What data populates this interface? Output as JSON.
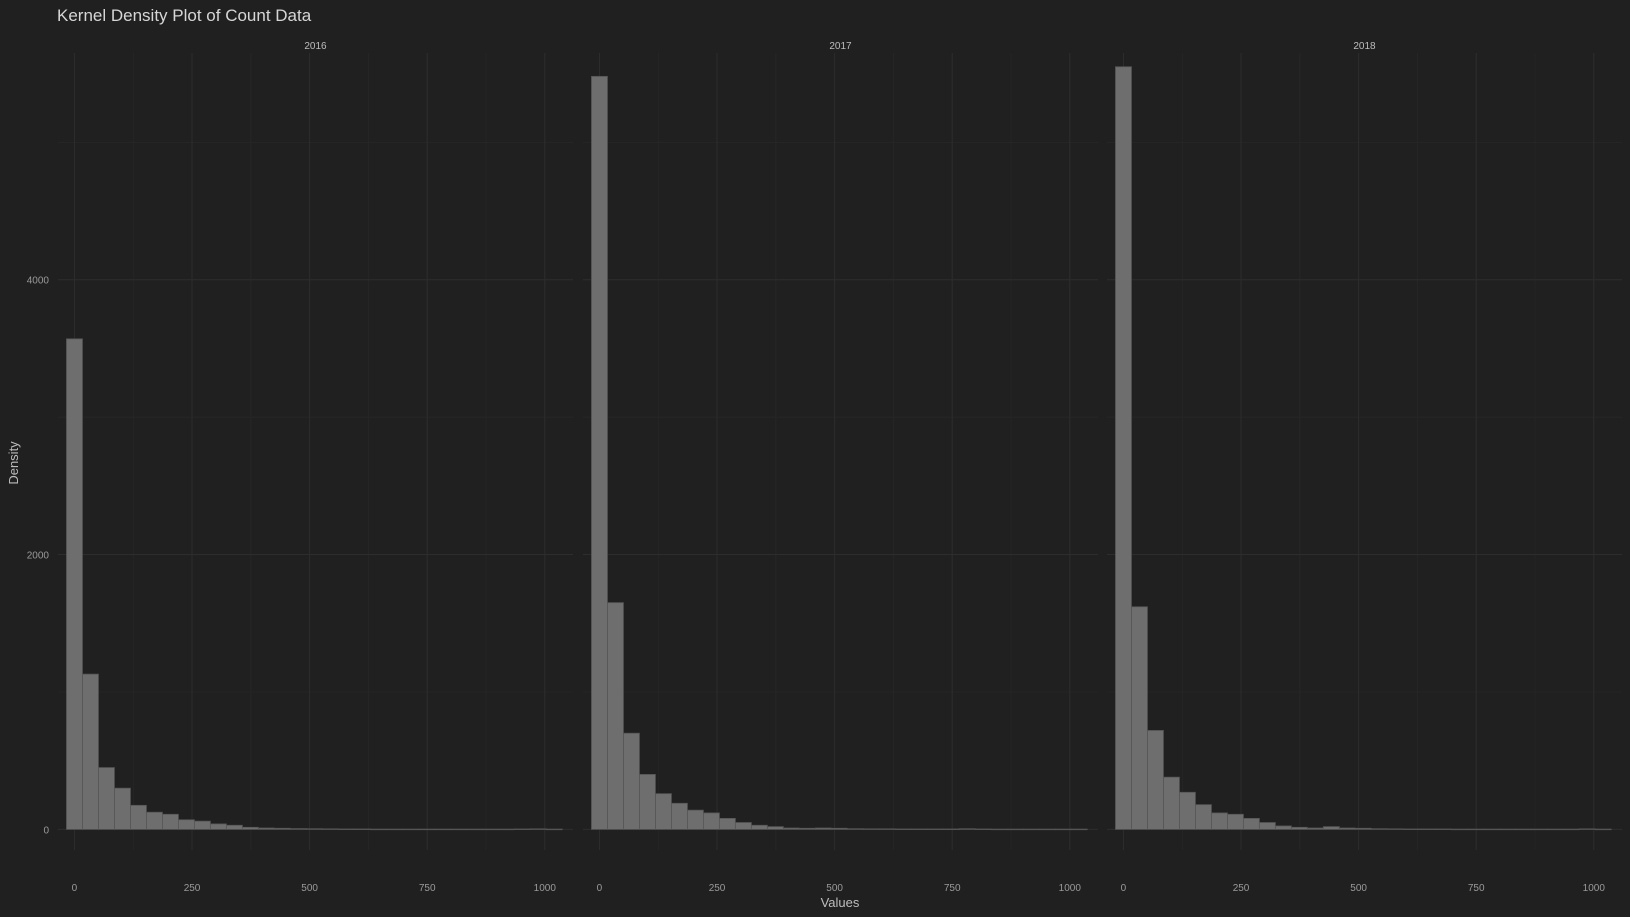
{
  "chart_data": {
    "type": "bar",
    "title": "Kernel Density Plot of Count Data",
    "xlabel": "Values",
    "ylabel": "Density",
    "xlim": [
      -35,
      1060
    ],
    "ylim": [
      -150,
      5650
    ],
    "x_ticks": [
      0,
      250,
      500,
      750,
      1000
    ],
    "x_tick_labels": [
      "0",
      "250",
      "500",
      "750",
      "1000"
    ],
    "y_ticks": [
      0,
      2000,
      4000
    ],
    "y_tick_labels": [
      "0",
      "2000",
      "4000"
    ],
    "grid": true,
    "legend": "none",
    "bin_width": 34,
    "bar_color": "#6e6e6e",
    "bar_edge_color": "#555555",
    "panels": [
      {
        "label": "2016",
        "bin_starts": [
          -17,
          17,
          51,
          85,
          119,
          153,
          187,
          221,
          255,
          289,
          323,
          357,
          391,
          425,
          459,
          493,
          527,
          561,
          595,
          629,
          663,
          697,
          731,
          765,
          799,
          833,
          867,
          901,
          935,
          969,
          1003
        ],
        "values": [
          3570,
          1130,
          450,
          300,
          175,
          125,
          110,
          70,
          60,
          40,
          30,
          15,
          10,
          8,
          6,
          5,
          4,
          3,
          3,
          2,
          2,
          2,
          2,
          2,
          2,
          2,
          2,
          2,
          3,
          4,
          2
        ]
      },
      {
        "label": "2017",
        "bin_starts": [
          -17,
          17,
          51,
          85,
          119,
          153,
          187,
          221,
          255,
          289,
          323,
          357,
          391,
          425,
          459,
          493,
          527,
          561,
          595,
          629,
          663,
          697,
          731,
          765,
          799,
          833,
          867,
          901,
          935,
          969,
          1003
        ],
        "values": [
          5480,
          1650,
          700,
          400,
          260,
          190,
          140,
          120,
          80,
          50,
          30,
          20,
          10,
          8,
          10,
          8,
          5,
          4,
          4,
          3,
          3,
          3,
          3,
          5,
          3,
          2,
          2,
          2,
          2,
          2,
          2
        ]
      },
      {
        "label": "2018",
        "bin_starts": [
          -17,
          17,
          51,
          85,
          119,
          153,
          187,
          221,
          255,
          289,
          323,
          357,
          391,
          425,
          459,
          493,
          527,
          561,
          595,
          629,
          663,
          697,
          731,
          765,
          799,
          833,
          867,
          901,
          935,
          969,
          1003
        ],
        "values": [
          5550,
          1620,
          720,
          380,
          270,
          180,
          120,
          110,
          80,
          50,
          25,
          15,
          10,
          20,
          10,
          8,
          5,
          4,
          3,
          3,
          3,
          2,
          2,
          2,
          2,
          2,
          2,
          2,
          2,
          4,
          2
        ]
      }
    ]
  }
}
